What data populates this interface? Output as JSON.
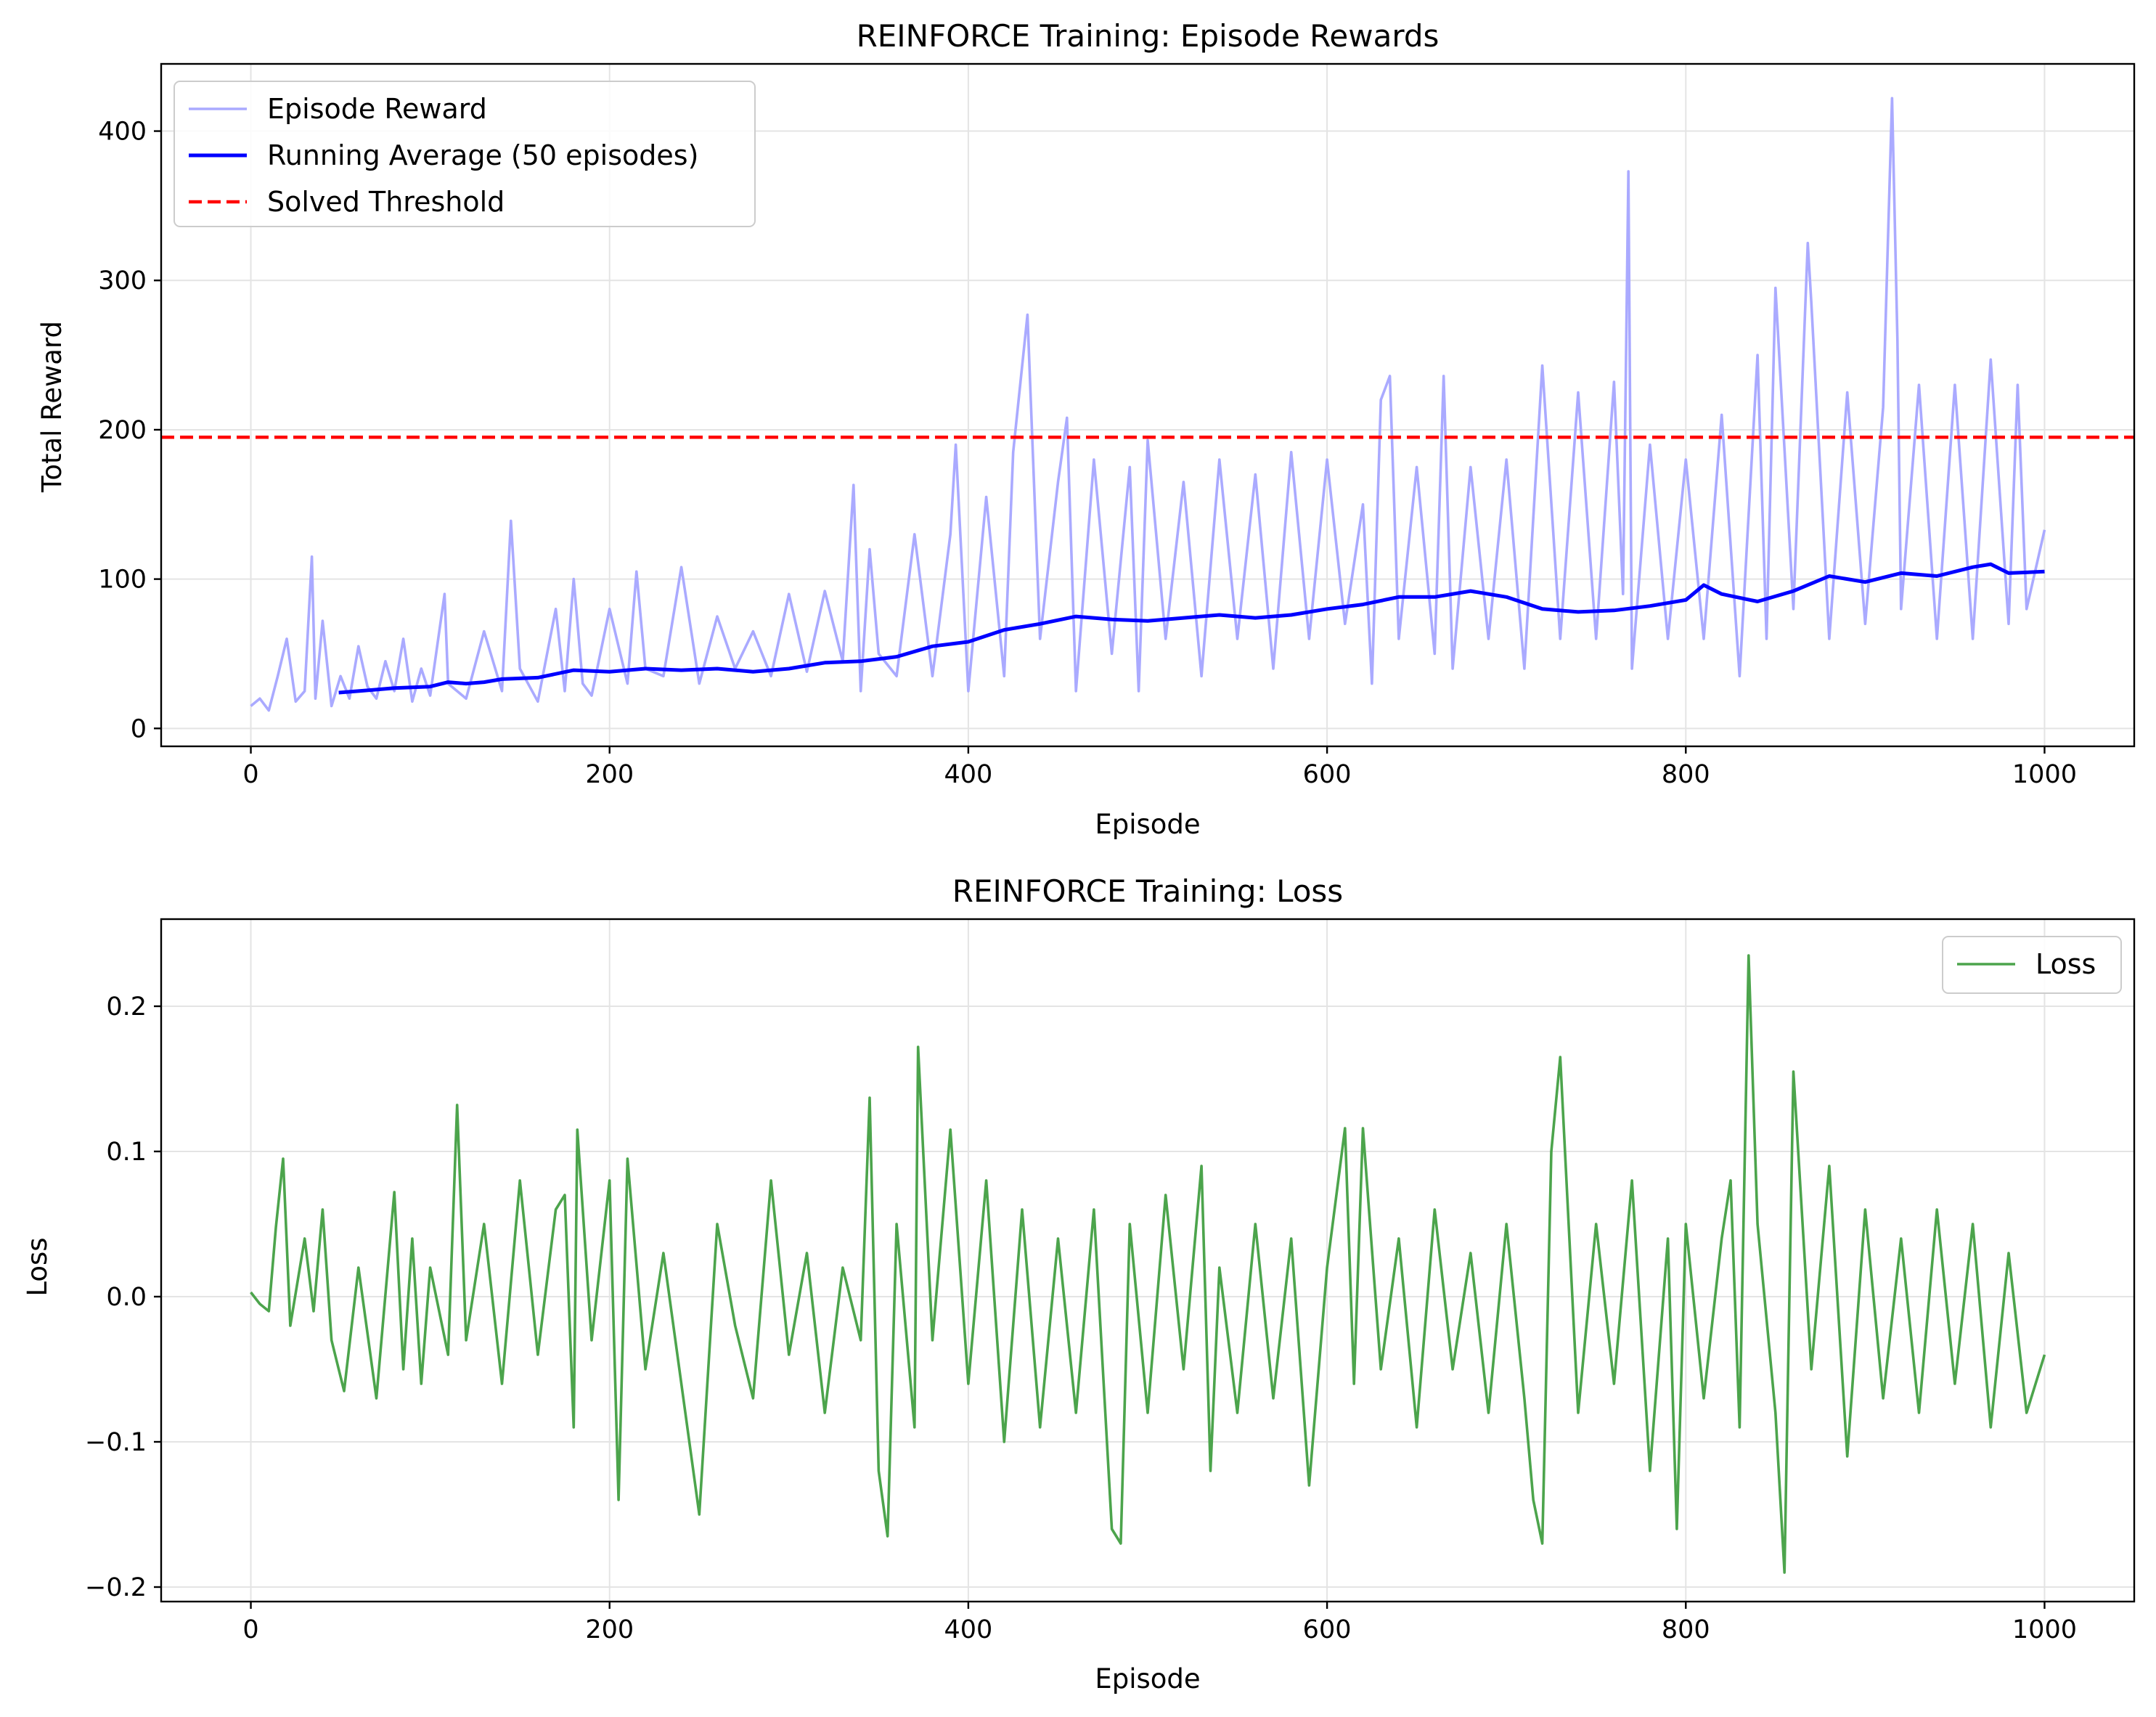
{
  "colors": {
    "episode_reward": "#aaaaff",
    "running_average": "#0000ff",
    "threshold": "#ff0000",
    "loss": "#4ca44c",
    "grid": "#e4e4e4",
    "axes": "#000000"
  },
  "chart_data": [
    {
      "type": "line",
      "title": "REINFORCE Training: Episode Rewards",
      "xlabel": "Episode",
      "ylabel": "Total Reward",
      "xlim": [
        -50,
        1050
      ],
      "ylim": [
        -12,
        445
      ],
      "xticks": [
        0,
        200,
        400,
        600,
        800,
        1000
      ],
      "yticks": [
        0,
        100,
        200,
        300,
        400
      ],
      "xtick_labels": [
        "0",
        "200",
        "400",
        "600",
        "800",
        "1000"
      ],
      "ytick_labels": [
        "0",
        "100",
        "200",
        "300",
        "400"
      ],
      "grid": true,
      "legend_position": "upper left",
      "series": [
        {
          "name": "Episode Reward",
          "style": "line",
          "x": [
            0,
            5,
            10,
            15,
            20,
            25,
            30,
            34,
            36,
            40,
            45,
            50,
            55,
            60,
            65,
            70,
            75,
            80,
            85,
            90,
            95,
            100,
            108,
            110,
            120,
            130,
            140,
            145,
            150,
            160,
            170,
            175,
            180,
            185,
            190,
            200,
            210,
            215,
            220,
            230,
            240,
            250,
            260,
            270,
            280,
            290,
            300,
            310,
            320,
            330,
            336,
            340,
            345,
            350,
            360,
            370,
            380,
            390,
            393,
            400,
            410,
            420,
            425,
            433,
            440,
            450,
            455,
            460,
            470,
            480,
            490,
            495,
            500,
            510,
            520,
            530,
            540,
            550,
            560,
            570,
            580,
            590,
            600,
            610,
            620,
            625,
            630,
            635,
            640,
            650,
            660,
            665,
            670,
            680,
            690,
            700,
            710,
            720,
            730,
            740,
            750,
            760,
            765,
            768,
            770,
            780,
            790,
            800,
            810,
            820,
            830,
            840,
            845,
            850,
            860,
            868,
            870,
            880,
            890,
            900,
            910,
            915,
            918,
            920,
            930,
            940,
            950,
            960,
            970,
            980,
            985,
            990,
            1000
          ],
          "y": [
            15,
            20,
            12,
            35,
            60,
            18,
            25,
            115,
            20,
            72,
            15,
            35,
            20,
            55,
            28,
            20,
            45,
            25,
            60,
            18,
            40,
            22,
            90,
            30,
            20,
            65,
            25,
            139,
            40,
            18,
            80,
            25,
            100,
            30,
            22,
            80,
            30,
            105,
            40,
            35,
            108,
            30,
            75,
            40,
            65,
            35,
            90,
            38,
            92,
            45,
            163,
            25,
            120,
            50,
            35,
            130,
            35,
            130,
            190,
            25,
            155,
            35,
            185,
            277,
            60,
            165,
            208,
            25,
            180,
            50,
            175,
            25,
            193,
            60,
            165,
            35,
            180,
            60,
            170,
            40,
            185,
            60,
            180,
            70,
            150,
            30,
            220,
            236,
            60,
            175,
            50,
            236,
            40,
            175,
            60,
            180,
            40,
            243,
            60,
            225,
            60,
            232,
            90,
            373,
            40,
            190,
            60,
            180,
            60,
            210,
            35,
            250,
            60,
            295,
            80,
            325,
            285,
            60,
            225,
            70,
            215,
            422,
            260,
            80,
            230,
            60,
            230,
            60,
            247,
            70,
            230,
            80,
            133
          ]
        },
        {
          "name": "Running Average (50 episodes)",
          "style": "line",
          "x": [
            49,
            60,
            80,
            100,
            110,
            120,
            130,
            140,
            160,
            180,
            200,
            220,
            240,
            260,
            280,
            300,
            320,
            340,
            360,
            380,
            400,
            420,
            440,
            460,
            480,
            500,
            520,
            540,
            560,
            580,
            600,
            620,
            640,
            660,
            680,
            700,
            720,
            740,
            760,
            780,
            800,
            810,
            820,
            840,
            860,
            880,
            900,
            920,
            940,
            960,
            970,
            980,
            1000
          ],
          "y": [
            24,
            25,
            27,
            28,
            31,
            30,
            31,
            33,
            34,
            39,
            38,
            40,
            39,
            40,
            38,
            40,
            44,
            45,
            48,
            55,
            58,
            66,
            70,
            75,
            73,
            72,
            74,
            76,
            74,
            76,
            80,
            83,
            88,
            88,
            92,
            88,
            80,
            78,
            79,
            82,
            86,
            96,
            90,
            85,
            92,
            102,
            98,
            104,
            102,
            108,
            110,
            104,
            105
          ]
        },
        {
          "name": "Solved Threshold",
          "style": "dashed",
          "x": [
            -50,
            1050
          ],
          "y": [
            195,
            195
          ]
        }
      ]
    },
    {
      "type": "line",
      "title": "REINFORCE Training: Loss",
      "xlabel": "Episode",
      "ylabel": "Loss",
      "xlim": [
        -50,
        1050
      ],
      "ylim": [
        -0.21,
        0.26
      ],
      "xticks": [
        0,
        200,
        400,
        600,
        800,
        1000
      ],
      "yticks": [
        -0.2,
        -0.1,
        0.0,
        0.1,
        0.2
      ],
      "xtick_labels": [
        "0",
        "200",
        "400",
        "600",
        "800",
        "1000"
      ],
      "ytick_labels": [
        "−0.2",
        "−0.1",
        "0.0",
        "0.1",
        "0.2"
      ],
      "grid": true,
      "legend_position": "upper right",
      "series": [
        {
          "name": "Loss",
          "style": "line",
          "x": [
            0,
            5,
            10,
            14,
            18,
            22,
            30,
            35,
            40,
            45,
            52,
            60,
            70,
            80,
            85,
            90,
            95,
            100,
            110,
            115,
            120,
            130,
            140,
            150,
            160,
            170,
            175,
            180,
            182,
            190,
            200,
            205,
            210,
            220,
            230,
            240,
            250,
            260,
            270,
            280,
            290,
            300,
            310,
            320,
            330,
            340,
            345,
            350,
            355,
            360,
            370,
            372,
            380,
            390,
            400,
            410,
            420,
            430,
            440,
            450,
            460,
            470,
            480,
            485,
            490,
            500,
            510,
            520,
            530,
            535,
            540,
            550,
            560,
            570,
            580,
            590,
            600,
            610,
            615,
            620,
            630,
            640,
            650,
            660,
            670,
            680,
            690,
            700,
            710,
            715,
            720,
            725,
            730,
            740,
            750,
            760,
            770,
            780,
            790,
            795,
            800,
            810,
            820,
            825,
            830,
            835,
            840,
            850,
            855,
            860,
            870,
            880,
            890,
            900,
            910,
            920,
            930,
            940,
            950,
            960,
            970,
            980,
            990,
            1000
          ],
          "y": [
            0.003,
            -0.005,
            -0.01,
            0.048,
            0.095,
            -0.02,
            0.04,
            -0.01,
            0.06,
            -0.03,
            -0.065,
            0.02,
            -0.07,
            0.072,
            -0.05,
            0.04,
            -0.06,
            0.02,
            -0.04,
            0.132,
            -0.03,
            0.05,
            -0.06,
            0.08,
            -0.04,
            0.06,
            0.07,
            -0.09,
            0.115,
            -0.03,
            0.08,
            -0.14,
            0.095,
            -0.05,
            0.03,
            -0.06,
            -0.15,
            0.05,
            -0.02,
            -0.07,
            0.08,
            -0.04,
            0.03,
            -0.08,
            0.02,
            -0.03,
            0.137,
            -0.12,
            -0.165,
            0.05,
            -0.09,
            0.172,
            -0.03,
            0.115,
            -0.06,
            0.08,
            -0.1,
            0.06,
            -0.09,
            0.04,
            -0.08,
            0.06,
            -0.16,
            -0.17,
            0.05,
            -0.08,
            0.07,
            -0.05,
            0.09,
            -0.12,
            0.02,
            -0.08,
            0.05,
            -0.07,
            0.04,
            -0.13,
            0.02,
            0.116,
            -0.06,
            0.116,
            -0.05,
            0.04,
            -0.09,
            0.06,
            -0.05,
            0.03,
            -0.08,
            0.05,
            -0.07,
            -0.14,
            -0.17,
            0.1,
            0.165,
            -0.08,
            0.05,
            -0.06,
            0.08,
            -0.12,
            0.04,
            -0.16,
            0.05,
            -0.07,
            0.04,
            0.08,
            -0.09,
            0.235,
            0.05,
            -0.08,
            -0.19,
            0.155,
            -0.05,
            0.09,
            -0.11,
            0.06,
            -0.07,
            0.04,
            -0.08,
            0.06,
            -0.06,
            0.05,
            -0.09,
            0.03,
            -0.08,
            -0.04
          ]
        }
      ]
    }
  ]
}
